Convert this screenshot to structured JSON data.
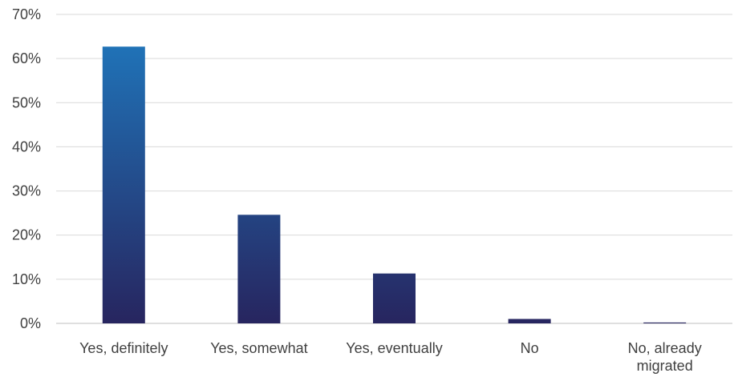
{
  "chart_data": {
    "type": "bar",
    "title": "",
    "xlabel": "",
    "ylabel": "",
    "categories": [
      [
        "Yes, definitely"
      ],
      [
        "Yes, somewhat"
      ],
      [
        "Yes, eventually"
      ],
      [
        "No"
      ],
      [
        "No, already",
        "migrated"
      ]
    ],
    "values": [
      62.7,
      24.6,
      11.3,
      1.0,
      0.2
    ],
    "ylim": [
      0,
      70
    ],
    "y_ticks": [
      0,
      10,
      20,
      30,
      40,
      50,
      60,
      70
    ],
    "y_tick_format": "percent",
    "grid": true,
    "legend": "none",
    "colors": {
      "bar_top": "#1f7bc1",
      "bar_bottom": "#27255f",
      "grid": "#d9d9d9",
      "text": "#404040"
    }
  }
}
